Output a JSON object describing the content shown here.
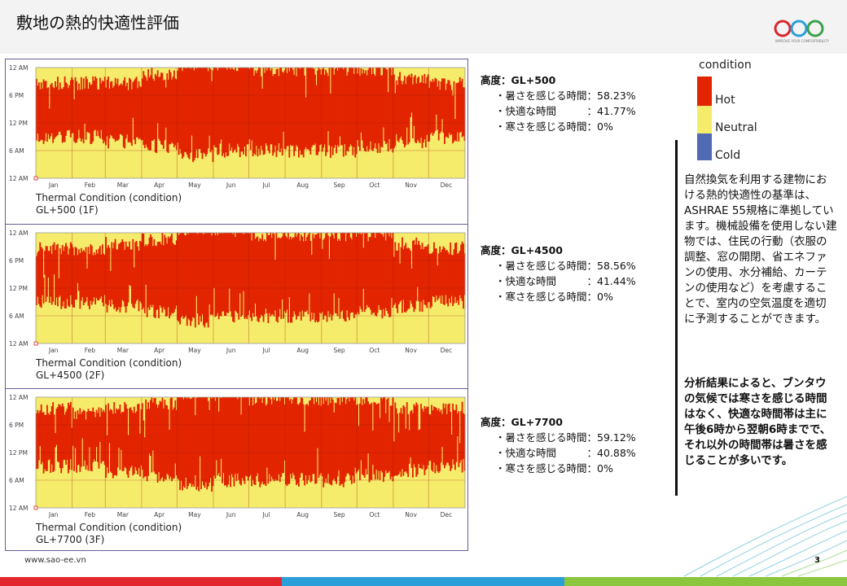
{
  "title": "敷地の熱的快適性評価",
  "logo": {
    "text": "SAO",
    "tagline": "IMPROVE YOUR COMFORTABILITY"
  },
  "colors": {
    "hot": "#e32400",
    "neutral": "#f6ec6b",
    "cold": "#4f6ab2",
    "frame": "#6b5b95"
  },
  "legend": {
    "title": "condition",
    "items": [
      {
        "label": "Hot",
        "color": "#e32400"
      },
      {
        "label": "Neutral",
        "color": "#f6ec6b"
      },
      {
        "label": "Cold",
        "color": "#4f6ab2"
      }
    ]
  },
  "chart_data": [
    {
      "type": "heatmap",
      "title": "Thermal Condition (condition)",
      "subtitle": "GL+500 (1F)",
      "x": [
        "Jan",
        "Feb",
        "Mar",
        "Apr",
        "May",
        "Jun",
        "Jul",
        "Aug",
        "Sep",
        "Oct",
        "Nov",
        "Dec"
      ],
      "y": [
        "12 AM",
        "6 AM",
        "12 PM",
        "6 PM",
        "12 AM"
      ],
      "categories": [
        "Hot",
        "Neutral",
        "Cold"
      ],
      "hot_hours_by_month": [
        [
          9,
          20
        ],
        [
          9,
          20
        ],
        [
          8,
          20
        ],
        [
          7,
          22
        ],
        [
          5,
          24
        ],
        [
          6,
          24
        ],
        [
          6,
          23
        ],
        [
          6,
          23
        ],
        [
          6,
          23
        ],
        [
          7,
          23
        ],
        [
          8,
          21
        ],
        [
          9,
          20
        ]
      ]
    },
    {
      "type": "heatmap",
      "title": "Thermal Condition (condition)",
      "subtitle": "GL+4500 (2F)",
      "x": [
        "Jan",
        "Feb",
        "Mar",
        "Apr",
        "May",
        "Jun",
        "Jul",
        "Aug",
        "Sep",
        "Oct",
        "Nov",
        "Dec"
      ],
      "y": [
        "12 AM",
        "6 AM",
        "12 PM",
        "6 PM",
        "12 AM"
      ],
      "categories": [
        "Hot",
        "Neutral",
        "Cold"
      ],
      "hot_hours_by_month": [
        [
          9,
          20
        ],
        [
          9,
          20
        ],
        [
          8,
          21
        ],
        [
          7,
          22
        ],
        [
          5,
          24
        ],
        [
          6,
          24
        ],
        [
          6,
          23
        ],
        [
          6,
          23
        ],
        [
          6,
          23
        ],
        [
          7,
          23
        ],
        [
          8,
          21
        ],
        [
          9,
          20
        ]
      ]
    },
    {
      "type": "heatmap",
      "title": "Thermal Condition (condition)",
      "subtitle": "GL+7700 (3F)",
      "x": [
        "Jan",
        "Feb",
        "Mar",
        "Apr",
        "May",
        "Jun",
        "Jul",
        "Aug",
        "Sep",
        "Oct",
        "Nov",
        "Dec"
      ],
      "y": [
        "12 AM",
        "6 AM",
        "12 PM",
        "6 PM",
        "12 AM"
      ],
      "categories": [
        "Hot",
        "Neutral",
        "Cold"
      ],
      "hot_hours_by_month": [
        [
          9,
          21
        ],
        [
          9,
          20
        ],
        [
          8,
          21
        ],
        [
          7,
          22
        ],
        [
          5,
          24
        ],
        [
          6,
          24
        ],
        [
          6,
          23
        ],
        [
          6,
          23
        ],
        [
          6,
          23
        ],
        [
          7,
          23
        ],
        [
          8,
          21
        ],
        [
          9,
          21
        ]
      ]
    }
  ],
  "stats": [
    {
      "heading": "高度：GL+500",
      "rows": [
        "・暑さを感じる時間：58.23%",
        "・快適な時間　　　：41.77%",
        "・寒さを感じる時間：0%"
      ]
    },
    {
      "heading": "高度：GL+4500",
      "rows": [
        "・暑さを感じる時間：58.56%",
        "・快適な時間　　　：41.44%",
        "・寒さを感じる時間：0%"
      ]
    },
    {
      "heading": "高度：GL+7700",
      "rows": [
        "・暑さを感じる時間：59.12%",
        "・快適な時間　　　：40.88%",
        "・寒さを感じる時間：0%"
      ]
    }
  ],
  "description": "自然換気を利用する建物における熱的快適性の基準は、ASHRAE 55規格に準拠しています。機械設備を使用しない建物では、住民の行動（衣服の調整、窓の開閉、省エネファンの使用、水分補給、カーテンの使用など）を考慮することで、室内の空気温度を適切に予測することができます。",
  "conclusion": "分析結果によると、ブンタウの気候では寒さを感じる時間はなく、快適な時間帯は主に午後6時から翌朝6時までで、それ以外の時間帯は暑さを感じることが多いです。",
  "footer": {
    "url": "www.sao-ee.vn",
    "page": "3"
  }
}
